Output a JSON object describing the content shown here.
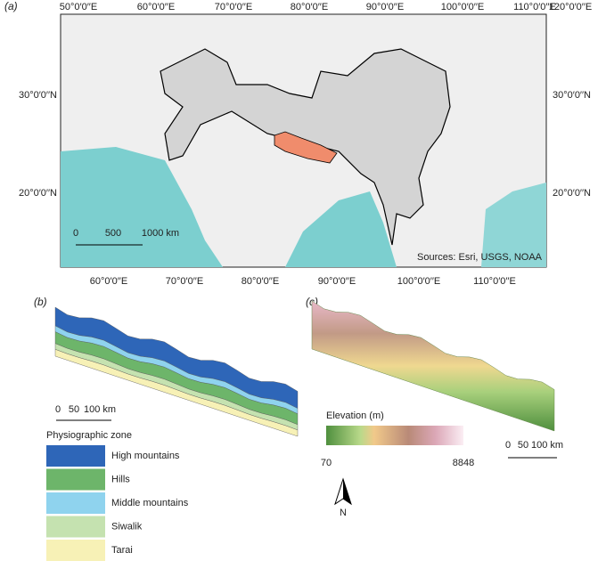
{
  "panel_a": {
    "label": "(a)",
    "top_longitudes": [
      "50°0′0′′E",
      "60°0′0′′E",
      "70°0′0′′E",
      "80°0′0′′E",
      "90°0′0′′E",
      "100°0′0′′E",
      "110°0′0′′E",
      "120°0′0′′E"
    ],
    "bottom_longitudes": [
      "60°0′0′′E",
      "70°0′0′′E",
      "80°0′0′′E",
      "90°0′0′′E",
      "100°0′0′′E",
      "110°0′0′′E"
    ],
    "left_latitudes": [
      "30°0′0′′N",
      "20°0′0′′N"
    ],
    "right_latitudes": [
      "30°0′0′′N",
      "20°0′0′′N"
    ],
    "scale_bar": [
      "0",
      "500",
      "1000 km"
    ],
    "credit": "Sources: Esri, USGS, NOAA"
  },
  "panel_b": {
    "label": "(b)",
    "scale_bar": [
      "0",
      "50",
      "100 km"
    ],
    "legend_title": "Physiographic zone",
    "zones": [
      {
        "name": "High mountains",
        "color": "#2e66b8"
      },
      {
        "name": "Hills",
        "color": "#6db56a"
      },
      {
        "name": "Middle mountains",
        "color": "#8fd3ee"
      },
      {
        "name": "Siwalik",
        "color": "#c5e2b0"
      },
      {
        "name": "Tarai",
        "color": "#f7f1b6"
      }
    ]
  },
  "panel_c": {
    "label": "(c)",
    "legend_title": "Elevation (m)",
    "min": 70,
    "max": 8848,
    "scale_bar": [
      "0",
      "50",
      "100 km"
    ],
    "north": "N"
  }
}
